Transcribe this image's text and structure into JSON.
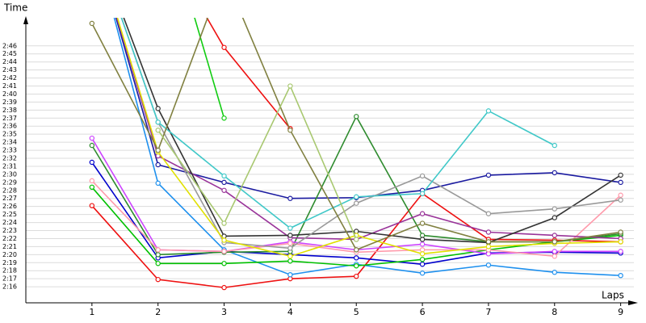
{
  "chart_data": {
    "type": "line",
    "y_label": "Time",
    "x_label": "Laps",
    "x": [
      1,
      2,
      3,
      4,
      5,
      6,
      7,
      8,
      9
    ],
    "xlim": [
      0,
      9.2
    ],
    "xticks": [
      1,
      2,
      3,
      4,
      5,
      6,
      7,
      8,
      9
    ],
    "ylim": [
      134,
      169.5
    ],
    "yticks": [
      {
        "value": 136,
        "label": "2:16"
      },
      {
        "value": 137,
        "label": "2:17"
      },
      {
        "value": 138,
        "label": "2:18"
      },
      {
        "value": 139,
        "label": "2:19"
      },
      {
        "value": 140,
        "label": "2:20"
      },
      {
        "value": 141,
        "label": "2:21"
      },
      {
        "value": 142,
        "label": "2:22"
      },
      {
        "value": 143,
        "label": "2:23"
      },
      {
        "value": 144,
        "label": "2:24"
      },
      {
        "value": 145,
        "label": "2:25"
      },
      {
        "value": 146,
        "label": "2:26"
      },
      {
        "value": 147,
        "label": "2:27"
      },
      {
        "value": 148,
        "label": "2:28"
      },
      {
        "value": 149,
        "label": "2:29"
      },
      {
        "value": 150,
        "label": "2:30"
      },
      {
        "value": 151,
        "label": "2:31"
      },
      {
        "value": 152,
        "label": "2:32"
      },
      {
        "value": 153,
        "label": "2:33"
      },
      {
        "value": 154,
        "label": "2:34"
      },
      {
        "value": 155,
        "label": "2:35"
      },
      {
        "value": 156,
        "label": "2:36"
      },
      {
        "value": 157,
        "label": "2:37"
      },
      {
        "value": 158,
        "label": "2:38"
      },
      {
        "value": 159,
        "label": "2:39"
      },
      {
        "value": 160,
        "label": "2:40"
      },
      {
        "value": 161,
        "label": "2:41"
      },
      {
        "value": 162,
        "label": "2:42"
      },
      {
        "value": 163,
        "label": "2:43"
      },
      {
        "value": 164,
        "label": "2:44"
      },
      {
        "value": 165,
        "label": "2:45"
      },
      {
        "value": 166,
        "label": "2:46"
      }
    ],
    "grid": true,
    "series": [
      {
        "color": "#ee1111",
        "values": [
          146.1,
          136.9,
          135.9,
          137.0,
          137.3,
          147.6,
          141.9,
          141.8,
          141.6
        ]
      },
      {
        "color": "#ee1111",
        "values": [
          null,
          180,
          165.8,
          155.7,
          null,
          null,
          null,
          null,
          null
        ]
      },
      {
        "color": "#1e90ee",
        "values": [
          180,
          148.9,
          140.6,
          137.5,
          138.8,
          137.7,
          138.7,
          137.8,
          137.4
        ]
      },
      {
        "color": "#1a1aa0",
        "values": [
          180,
          151.2,
          149.0,
          147.0,
          147.1,
          148.0,
          149.9,
          150.2,
          149.0
        ]
      },
      {
        "color": "#0000cc",
        "values": [
          151.5,
          139.6,
          140.4,
          140.0,
          139.6,
          138.8,
          140.2,
          140.3,
          140.2
        ]
      },
      {
        "color": "#00c000",
        "values": [
          148.4,
          138.9,
          138.9,
          139.2,
          138.6,
          139.4,
          140.6,
          141.6,
          142.4
        ]
      },
      {
        "color": "#11cc11",
        "values": [
          null,
          185,
          157.0,
          null,
          null,
          null,
          null,
          null,
          null
        ]
      },
      {
        "color": "#2e8b2e",
        "values": [
          153.6,
          140.0,
          140.3,
          140.4,
          157.2,
          142.4,
          141.6,
          141.6,
          142.6
        ]
      },
      {
        "color": "#cc44ff",
        "values": [
          154.5,
          140.6,
          140.4,
          141.6,
          140.6,
          141.3,
          140.1,
          140.4,
          140.4
        ]
      },
      {
        "color": "#ff99aa",
        "values": [
          149.2,
          140.6,
          140.4,
          141.4,
          140.3,
          140.6,
          140.6,
          139.8,
          147.4
        ]
      },
      {
        "color": "#993399",
        "values": [
          180,
          152.3,
          148.0,
          142.1,
          141.9,
          145.1,
          142.8,
          142.4,
          142.0
        ]
      },
      {
        "color": "#333333",
        "values": [
          180,
          158.2,
          142.3,
          142.4,
          142.9,
          141.9,
          141.5,
          144.6,
          149.9
        ]
      },
      {
        "color": "#999999",
        "values": [
          180,
          156.5,
          141.5,
          140.8,
          146.4,
          149.8,
          145.1,
          145.7,
          146.8
        ]
      },
      {
        "color": "#40c8c8",
        "values": [
          180,
          156.5,
          149.8,
          143.3,
          147.2,
          147.6,
          157.9,
          153.6,
          null
        ]
      },
      {
        "color": "#e0e000",
        "values": [
          180,
          152.8,
          141.8,
          139.8,
          142.4,
          140.1,
          141.0,
          141.4,
          141.6
        ]
      },
      {
        "color": "#808040",
        "values": [
          168.8,
          153.0,
          175,
          155.5,
          140.6,
          143.9,
          141.6,
          141.6,
          142.8
        ]
      },
      {
        "color": "#a8c870",
        "values": [
          null,
          155.5,
          143.9,
          161.0,
          141.9,
          null,
          null,
          null,
          null
        ]
      }
    ]
  }
}
